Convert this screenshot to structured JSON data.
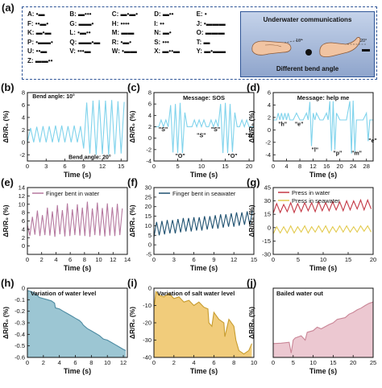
{
  "panel_a": {
    "letter": "(a)",
    "morse": [
      {
        "ch": "A",
        "code": "•▬"
      },
      {
        "ch": "B",
        "code": "▬•••"
      },
      {
        "ch": "C",
        "code": "▬•▬•"
      },
      {
        "ch": "D",
        "code": "▬••"
      },
      {
        "ch": "E",
        "code": "•"
      },
      {
        "ch": "F",
        "code": "••▬•"
      },
      {
        "ch": "G",
        "code": "▬▬•"
      },
      {
        "ch": "H",
        "code": "••••"
      },
      {
        "ch": "I",
        "code": "••"
      },
      {
        "ch": "J",
        "code": "•▬▬▬"
      },
      {
        "ch": "K",
        "code": "▬•▬"
      },
      {
        "ch": "L",
        "code": "•▬••"
      },
      {
        "ch": "M",
        "code": "▬▬"
      },
      {
        "ch": "N",
        "code": "▬•"
      },
      {
        "ch": "O",
        "code": "▬▬▬"
      },
      {
        "ch": "P",
        "code": "•▬▬•"
      },
      {
        "ch": "Q",
        "code": "▬▬•▬"
      },
      {
        "ch": "R",
        "code": "•▬•"
      },
      {
        "ch": "S",
        "code": "•••"
      },
      {
        "ch": "T",
        "code": "▬"
      },
      {
        "ch": "U",
        "code": "••▬"
      },
      {
        "ch": "V",
        "code": "•••▬"
      },
      {
        "ch": "W",
        "code": "•▬▬"
      },
      {
        "ch": "X",
        "code": "▬••▬"
      },
      {
        "ch": "Y",
        "code": "▬•▬▬"
      },
      {
        "ch": "Z",
        "code": "▬▬••"
      }
    ],
    "title": "Underwater communications",
    "footer": "Different bend angle",
    "angle1": "10°",
    "angle2": "20°"
  },
  "colors": {
    "b": "#7fd3ec",
    "c": "#7fd3ec",
    "d": "#7fd3ec",
    "e": "#b5789f",
    "f": "#1f5170",
    "g_water": "#c43845",
    "g_sea": "#e3cb4f",
    "h_line": "#4d8ba2",
    "h_fill": "#9cc6d3",
    "i_line": "#c79c2f",
    "i_fill": "#f1cc7b",
    "j_line": "#c98596",
    "j_fill": "#ecc8d1",
    "sig": "#ed1f24"
  },
  "chart_data": [
    {
      "id": "b",
      "letter": "(b)",
      "type": "line",
      "xlabel": "Time (s)",
      "ylabel": "ΔR/R₀ (%)",
      "xlim": [
        0,
        16
      ],
      "ylim": [
        -3,
        8
      ],
      "xticks": [
        0,
        3,
        6,
        9,
        12,
        15
      ],
      "yticks": [
        -2,
        0,
        2,
        4,
        6,
        8
      ],
      "annotations": [
        {
          "text": "Bend angle: 10°",
          "x": 0.8,
          "y": 7.1
        },
        {
          "text": "Bend angle: 20°",
          "x": 6.6,
          "y": -2.7
        }
      ],
      "x": [
        0,
        0.5,
        1,
        1.5,
        2,
        2.5,
        3,
        3.5,
        4,
        4.5,
        5,
        5.5,
        6,
        6.5,
        7,
        7.5,
        8,
        8.5,
        9,
        9.5,
        10,
        10.5,
        11,
        11.5,
        12,
        12.5,
        13,
        13.5,
        14,
        14.5,
        15,
        15.5
      ],
      "y": [
        0,
        2.3,
        0,
        2.5,
        0,
        2.6,
        0,
        2.6,
        0,
        2.7,
        0,
        2.7,
        0,
        2.6,
        0,
        2.7,
        0,
        2.6,
        -1,
        6.4,
        -1.8,
        6.7,
        -2,
        6.8,
        -1.9,
        6.7,
        -2,
        6.8,
        -1.9,
        6.6,
        -1.8,
        6.5
      ]
    },
    {
      "id": "c",
      "letter": "(c)",
      "type": "line",
      "title": "Message: SOS",
      "xlabel": "Time (s)",
      "ylabel": "ΔR/R₀ (%)",
      "xlim": [
        0,
        21
      ],
      "ylim": [
        -4,
        8
      ],
      "xticks": [
        0,
        5,
        10,
        15,
        20
      ],
      "yticks": [
        -4,
        -2,
        0,
        2,
        4,
        6,
        8
      ],
      "annotations": [
        {
          "text": "\"S\"",
          "x": 1,
          "y": 1.2
        },
        {
          "text": "\"O\"",
          "x": 4.5,
          "y": -3.4
        },
        {
          "text": "\"S\"",
          "x": 9,
          "y": 0.2
        },
        {
          "text": "\"S\"",
          "x": 12,
          "y": 1.2
        },
        {
          "text": "\"O\"",
          "x": 15.5,
          "y": -3.4
        },
        {
          "text": "\"S\"",
          "x": 19.2,
          "y": 0.2
        }
      ],
      "x": [
        0,
        1,
        1.5,
        2,
        2.5,
        3,
        3.5,
        4,
        4.5,
        5,
        5.5,
        6,
        6.5,
        7,
        7.5,
        8,
        8.5,
        9,
        9.5,
        10,
        10.5,
        11,
        11.5,
        12,
        12.5,
        13,
        13.5,
        14,
        14.5,
        15,
        15.5,
        16,
        16.5,
        17,
        17.5,
        18,
        18.5,
        19,
        19.5,
        20,
        21
      ],
      "y": [
        2,
        2,
        3.2,
        2,
        3.2,
        2,
        5.8,
        -2.5,
        6,
        -2.6,
        6.2,
        -2.6,
        4.5,
        2,
        2,
        2,
        3.2,
        2,
        3.2,
        2,
        3.2,
        2,
        2,
        3.2,
        2,
        3.2,
        2,
        6,
        -2.6,
        6.2,
        -2.6,
        6,
        -2.4,
        4.5,
        2,
        2,
        3.2,
        2,
        3.2,
        2,
        2
      ]
    },
    {
      "id": "d",
      "letter": "(d)",
      "type": "line",
      "title": "Message: help me",
      "xlabel": "Time (s)",
      "ylabel": "ΔR/R₀ (%)",
      "xlim": [
        0,
        30
      ],
      "ylim": [
        -5,
        6
      ],
      "xticks": [
        0,
        4,
        8,
        12,
        16,
        20,
        24,
        28
      ],
      "yticks": [
        -4,
        -2,
        0,
        2,
        4,
        6
      ],
      "annotations": [
        {
          "text": "\"h\"",
          "x": 1.5,
          "y": 0.6
        },
        {
          "text": "\"e\"",
          "x": 6.5,
          "y": 0.6
        },
        {
          "text": "\"l\"",
          "x": 11.5,
          "y": -3.5
        },
        {
          "text": "\"p\"",
          "x": 18,
          "y": -4
        },
        {
          "text": "\"m\"",
          "x": 23.5,
          "y": -4
        },
        {
          "text": "\"e\"",
          "x": 28.6,
          "y": -2
        }
      ],
      "x": [
        0,
        1,
        1.5,
        2,
        2.5,
        3,
        3.5,
        4,
        4.5,
        5,
        6,
        7,
        8,
        9,
        10,
        10.5,
        11,
        11.5,
        12,
        12.5,
        13,
        14,
        15,
        16,
        16.5,
        17,
        17.5,
        18,
        18.5,
        19,
        20,
        21,
        22,
        23,
        23.5,
        24,
        24.5,
        25,
        26,
        27,
        28,
        28.5,
        29,
        30
      ],
      "y": [
        1.6,
        1.6,
        2.7,
        1.6,
        2.7,
        1.6,
        2.7,
        1.6,
        2.7,
        1.6,
        1.6,
        2.7,
        1.6,
        1.6,
        2.7,
        1.6,
        4.5,
        -2.6,
        2.7,
        1.6,
        2.7,
        1.6,
        1.6,
        2.7,
        1.6,
        4.6,
        -3.4,
        4.6,
        -3.2,
        2.7,
        1.6,
        1.6,
        1.6,
        4.6,
        -3.8,
        4.7,
        -3.6,
        1.6,
        1.6,
        1.6,
        2.7,
        -1.8,
        1.6,
        1.6
      ]
    },
    {
      "id": "e",
      "letter": "(e)",
      "type": "line",
      "legend": "Finger bent in water",
      "xlabel": "Time (s)",
      "ylabel": "ΔR/R₀ (%)",
      "xlim": [
        0,
        14
      ],
      "ylim": [
        -2,
        14
      ],
      "xticks": [
        0,
        2,
        4,
        6,
        8,
        10,
        12,
        14
      ],
      "yticks": [
        0,
        2,
        4,
        6,
        8,
        10,
        12,
        14
      ],
      "x": [
        0,
        0.35,
        0.7,
        1.05,
        1.4,
        1.75,
        2.1,
        2.45,
        2.8,
        3.15,
        3.5,
        3.85,
        4.2,
        4.55,
        4.9,
        5.25,
        5.6,
        5.95,
        6.3,
        6.65,
        7,
        7.35,
        7.7,
        8.05,
        8.4,
        8.75,
        9.1,
        9.45,
        9.8,
        10.15,
        10.5,
        10.85,
        11.2,
        11.55,
        11.9,
        12.25,
        12.6,
        12.95,
        13.3
      ],
      "y": [
        5,
        2.5,
        7,
        2.7,
        8.5,
        2.4,
        7.4,
        2.6,
        9.2,
        2.5,
        8.3,
        2.2,
        9.8,
        2.8,
        8.6,
        2.3,
        10.2,
        2.4,
        8.8,
        2.6,
        10,
        2.5,
        9.2,
        2.4,
        10.6,
        2.2,
        9,
        2.6,
        10.4,
        2.5,
        9.1,
        2.3,
        10.2,
        2.5,
        9.3,
        2.4,
        10.1,
        2.6,
        9
      ]
    },
    {
      "id": "f",
      "letter": "(f)",
      "type": "line",
      "legend": "Finger bent in seawater",
      "xlabel": "Time (s)",
      "ylabel": "ΔR/R₀ (%)",
      "xlim": [
        0,
        15
      ],
      "ylim": [
        -5,
        30
      ],
      "xticks": [
        0,
        3,
        6,
        9,
        12,
        15
      ],
      "yticks": [
        -5,
        0,
        5,
        10,
        15,
        20,
        25,
        30
      ],
      "x": [
        0,
        0.4,
        0.8,
        1.2,
        1.6,
        2,
        2.4,
        2.8,
        3.2,
        3.6,
        4,
        4.4,
        4.8,
        5.2,
        5.6,
        6,
        6.4,
        6.8,
        7.2,
        7.6,
        8,
        8.4,
        8.8,
        9.2,
        9.6,
        10,
        10.4,
        10.8,
        11.2,
        11.6,
        12,
        12.4,
        12.8,
        13.2,
        13.6,
        14,
        14.4,
        14.8
      ],
      "y": [
        4,
        12,
        5,
        12.5,
        5.5,
        13,
        6,
        13,
        6,
        13.5,
        6.5,
        14,
        7,
        14,
        7,
        14.5,
        7.5,
        14.5,
        7.5,
        15,
        8,
        15,
        8.5,
        15.5,
        8.5,
        16,
        9,
        16,
        9.5,
        16.5,
        9.5,
        17,
        10,
        17,
        10.5,
        17.5,
        10.5,
        18
      ]
    },
    {
      "id": "g",
      "letter": "(g)",
      "type": "line",
      "xlabel": "Time (s)",
      "ylabel": "ΔR/R₀ (%)",
      "xlim": [
        0,
        20
      ],
      "ylim": [
        -30,
        45
      ],
      "xticks": [
        0,
        5,
        10,
        15,
        20
      ],
      "yticks": [
        -30,
        -15,
        0,
        15,
        30,
        45
      ],
      "series": [
        {
          "name": "Press in water",
          "x": [
            0,
            0.7,
            1.4,
            2.1,
            2.8,
            3.5,
            4.2,
            4.9,
            5.6,
            6.3,
            7,
            7.7,
            8.4,
            9.1,
            9.8,
            10.5,
            11.2,
            11.9,
            12.6,
            13.3,
            14,
            14.7,
            15.4,
            16.1,
            16.8,
            17.5,
            18.2,
            18.9,
            19.6
          ],
          "y": [
            16,
            27,
            17,
            26,
            18,
            28,
            17,
            27,
            18,
            28,
            19,
            28,
            18,
            29,
            19,
            28,
            19,
            29,
            20,
            29,
            19,
            30,
            20,
            30,
            21,
            31,
            20,
            31,
            21
          ]
        },
        {
          "name": "Press in seawater",
          "x": [
            0,
            0.7,
            1.4,
            2.1,
            2.8,
            3.5,
            4.2,
            4.9,
            5.6,
            6.3,
            7,
            7.7,
            8.4,
            9.1,
            9.8,
            10.5,
            11.2,
            11.9,
            12.6,
            13.3,
            14,
            14.7,
            15.4,
            16.1,
            16.8,
            17.5,
            18.2,
            18.9,
            19.6
          ],
          "y": [
            -7,
            1,
            -6,
            1,
            -6,
            2,
            -6,
            1,
            -5,
            2,
            -6,
            1,
            -5,
            2,
            -5,
            2,
            -6,
            1,
            -5,
            2,
            -5,
            2,
            -5,
            1,
            -5,
            2,
            -4,
            2,
            -5
          ]
        }
      ]
    },
    {
      "id": "h",
      "letter": "(h)",
      "type": "area",
      "title": "Variation of water level",
      "xlabel": "Time (s)",
      "ylabel": "ΔR/R₀ (%)",
      "xlim": [
        0,
        12.5
      ],
      "ylim": [
        -0.6,
        0
      ],
      "xticks": [
        0,
        2,
        4,
        6,
        8,
        10,
        12
      ],
      "yticks": [
        -0.6,
        -0.5,
        -0.4,
        -0.3,
        -0.2,
        -0.1,
        0
      ],
      "x": [
        0,
        0.5,
        1,
        1.5,
        2,
        2.5,
        3,
        3.4,
        3.5,
        4,
        4.5,
        5,
        5.5,
        6,
        6.5,
        6.8,
        7,
        7.5,
        8,
        8.5,
        9,
        9.5,
        10,
        10.5,
        11,
        11.5,
        12,
        12.3
      ],
      "y": [
        -0.02,
        -0.03,
        -0.05,
        -0.08,
        -0.09,
        -0.1,
        -0.11,
        -0.13,
        -0.17,
        -0.18,
        -0.2,
        -0.22,
        -0.24,
        -0.26,
        -0.28,
        -0.3,
        -0.32,
        -0.35,
        -0.37,
        -0.39,
        -0.41,
        -0.44,
        -0.45,
        -0.47,
        -0.49,
        -0.51,
        -0.53,
        -0.54
      ]
    },
    {
      "id": "i",
      "letter": "(i)",
      "type": "area",
      "title": "Variation of salt water level",
      "xlabel": "Time (s)",
      "ylabel": "ΔR/R₀ (%)",
      "xlim": [
        0,
        10
      ],
      "ylim": [
        -40,
        0
      ],
      "xticks": [
        0,
        2,
        4,
        6,
        8,
        10
      ],
      "yticks": [
        -40,
        -30,
        -20,
        -10,
        0
      ],
      "x": [
        0,
        0.2,
        0.5,
        1,
        1.5,
        2,
        2.5,
        3,
        3.5,
        4,
        4.5,
        5,
        5.4,
        5.5,
        5.8,
        6,
        6.5,
        7,
        7.1,
        7.5,
        8,
        8.2,
        8.5,
        9,
        9.5,
        9.8
      ],
      "y": [
        -12,
        -2,
        -4,
        -5,
        -3,
        -6,
        -5,
        -8,
        -7,
        -10,
        -8,
        -11,
        -12,
        -20,
        -22,
        -14,
        -18,
        -20,
        -28,
        -18,
        -22,
        -30,
        -36,
        -38,
        -36,
        -32
      ]
    },
    {
      "id": "j",
      "letter": "(j)",
      "type": "area",
      "title": "Bailed water out",
      "xlabel": "Time (s)",
      "ylabel": "ΔR/R₀ (%)",
      "xlim": [
        0,
        25
      ],
      "ylim": [
        -0.3,
        1.3
      ],
      "xticks": [
        0,
        5,
        10,
        15,
        20,
        25
      ],
      "yticks": [],
      "x": [
        0,
        2,
        4,
        4.5,
        5,
        5.5,
        7,
        8,
        8.5,
        10,
        11,
        12,
        14,
        15,
        16,
        18,
        19,
        20,
        21,
        22,
        23,
        24,
        25
      ],
      "y": [
        0.02,
        0.03,
        0.05,
        -0.2,
        0.1,
        0.15,
        0.2,
        0.1,
        0.28,
        0.32,
        0.4,
        0.36,
        0.46,
        0.5,
        0.58,
        0.62,
        0.7,
        0.74,
        0.8,
        0.84,
        0.9,
        0.95,
        0.98
      ]
    }
  ]
}
